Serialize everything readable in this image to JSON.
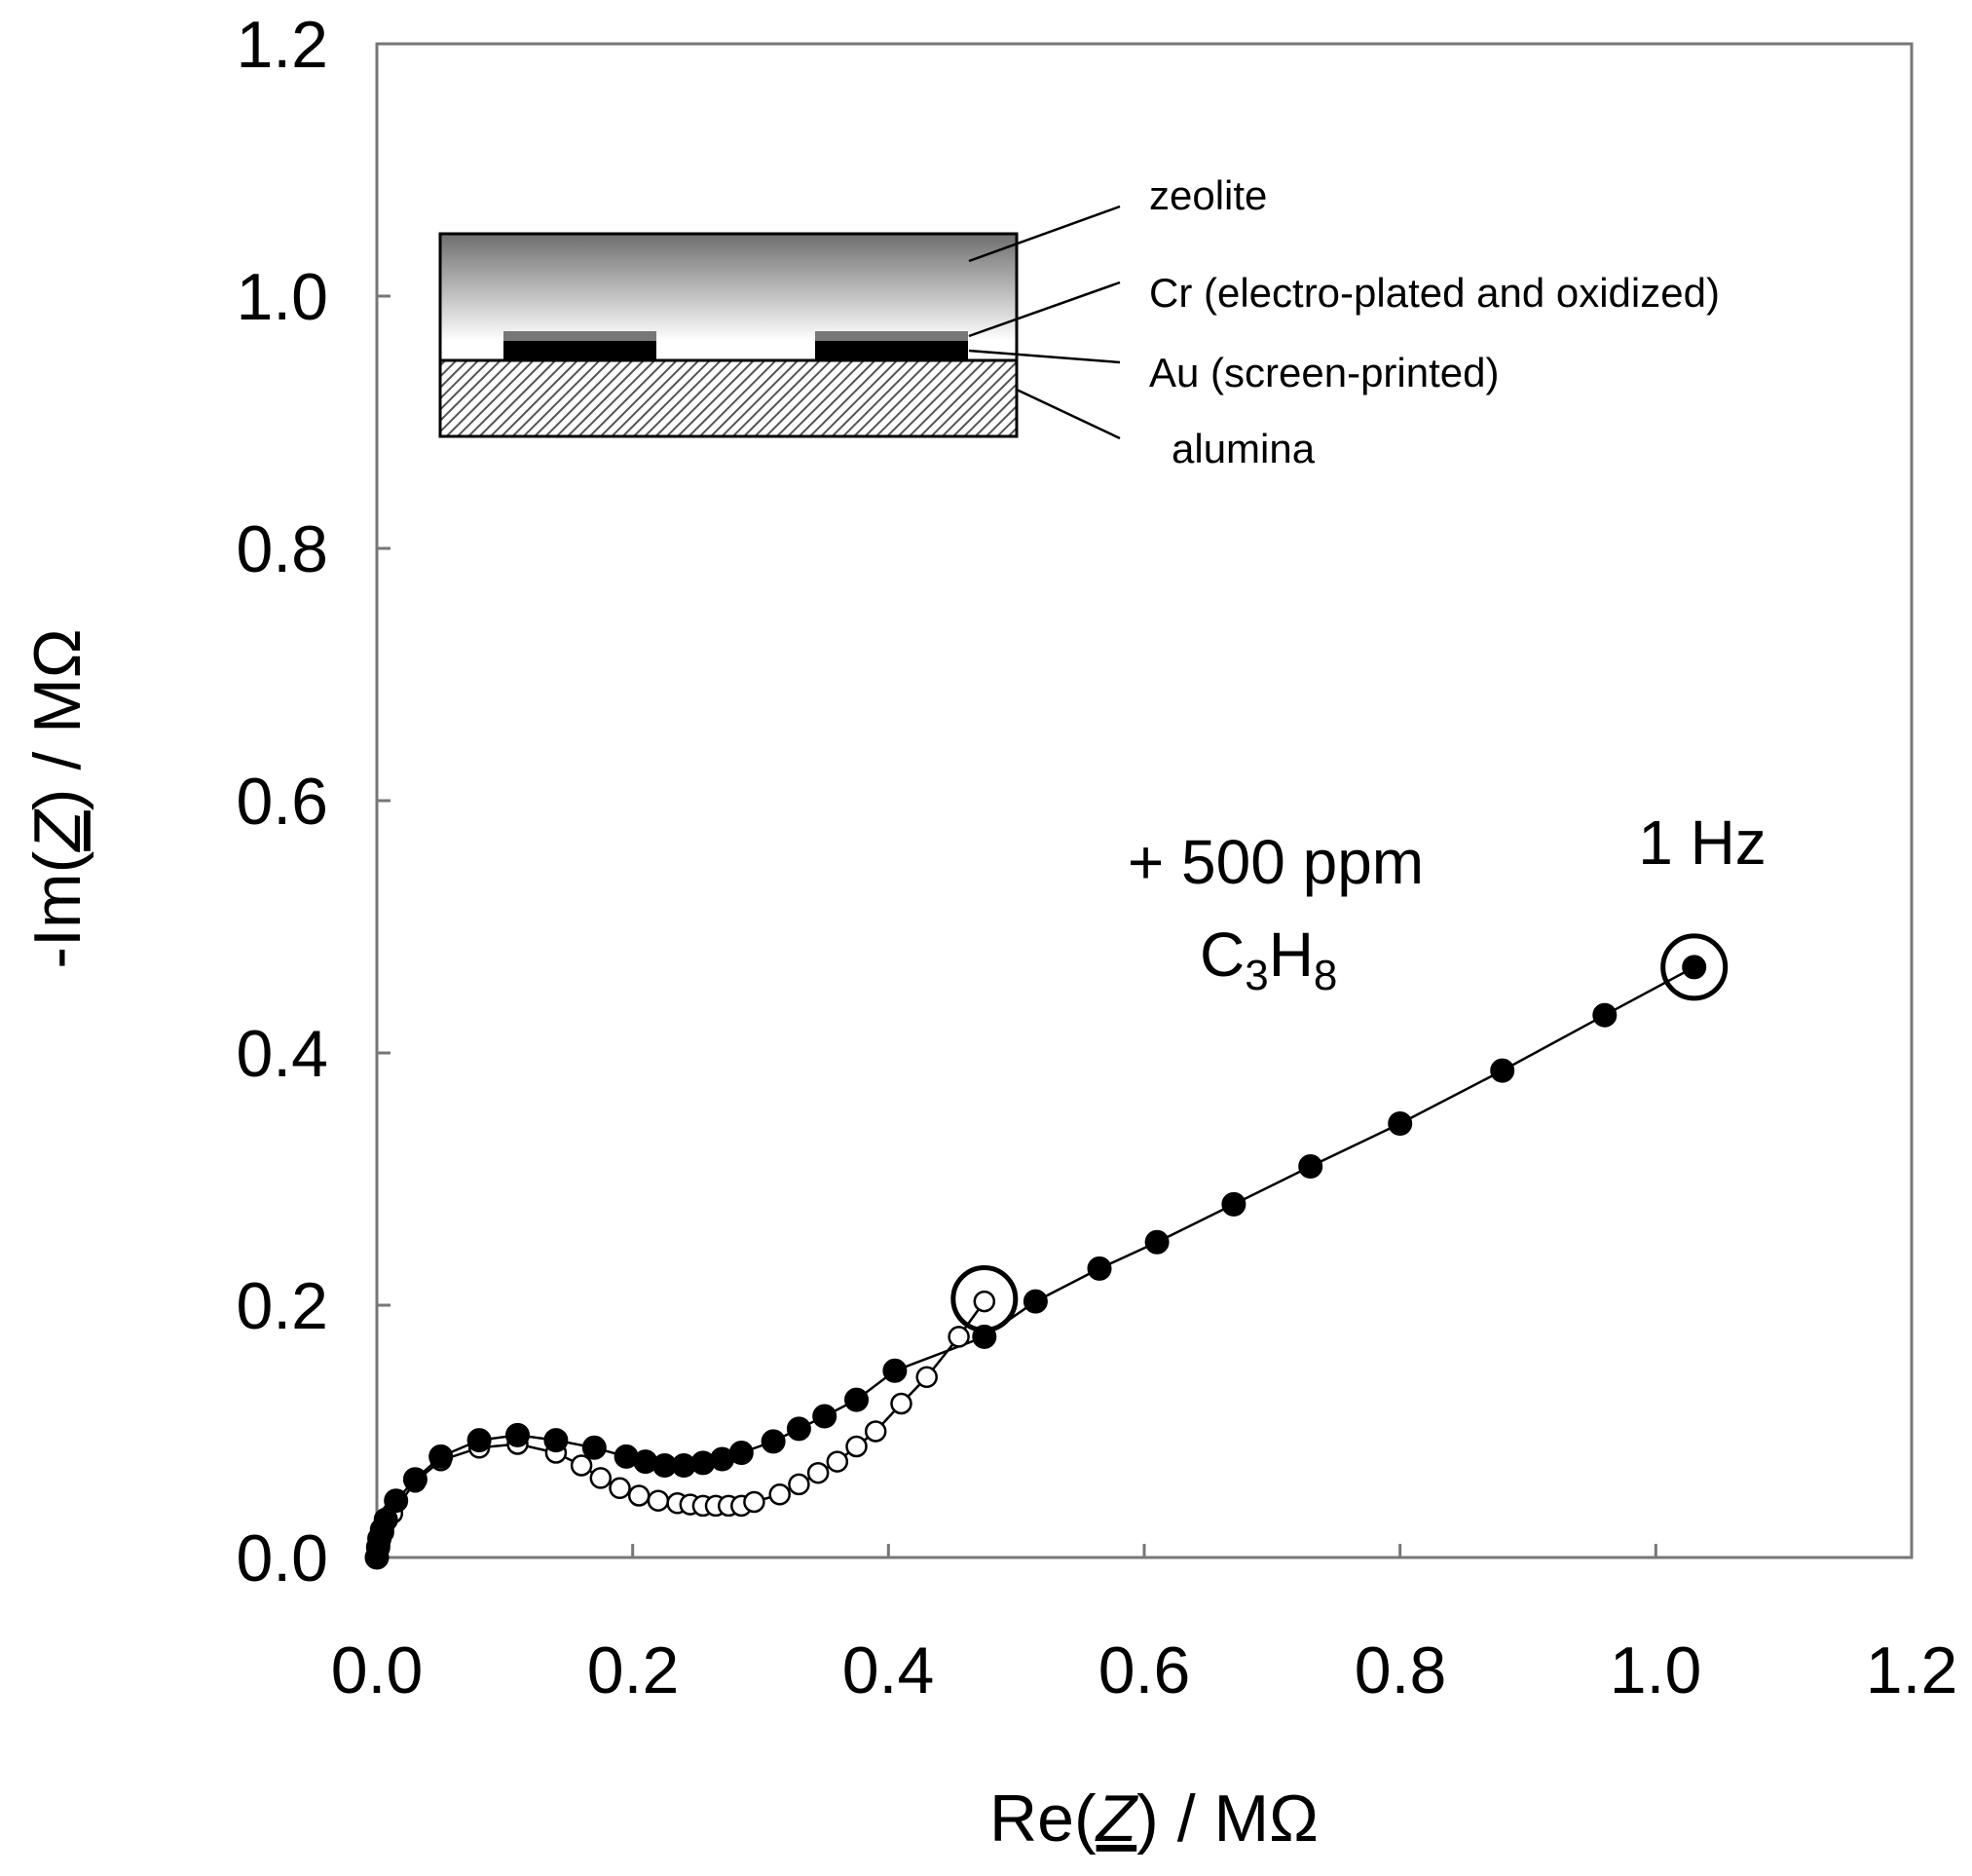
{
  "chart_data": {
    "type": "scatter",
    "x_title": {
      "prefix": "Re(",
      "var": "Z",
      "suffix": ") / MΩ"
    },
    "y_title": {
      "prefix": "-Im(",
      "var": "Z",
      "suffix": ") / MΩ"
    },
    "xlim": [
      0,
      1.2
    ],
    "ylim": [
      0,
      1.2
    ],
    "x_ticks": [
      "0.0",
      "0.2",
      "0.4",
      "0.6",
      "0.8",
      "1.0",
      "1.2"
    ],
    "y_ticks": [
      "0.0",
      "0.2",
      "0.4",
      "0.6",
      "0.8",
      "1.0",
      "1.2"
    ],
    "grid": false,
    "series": [
      {
        "name": "filled markers",
        "marker": "filled-circle",
        "points": [
          [
            0.0,
            0.0
          ],
          [
            0.001,
            0.008
          ],
          [
            0.002,
            0.015
          ],
          [
            0.004,
            0.022
          ],
          [
            0.007,
            0.03
          ],
          [
            0.015,
            0.045
          ],
          [
            0.03,
            0.062
          ],
          [
            0.05,
            0.08
          ],
          [
            0.08,
            0.093
          ],
          [
            0.11,
            0.097
          ],
          [
            0.14,
            0.093
          ],
          [
            0.17,
            0.087
          ],
          [
            0.195,
            0.08
          ],
          [
            0.21,
            0.076
          ],
          [
            0.225,
            0.073
          ],
          [
            0.24,
            0.073
          ],
          [
            0.255,
            0.075
          ],
          [
            0.27,
            0.078
          ],
          [
            0.285,
            0.083
          ],
          [
            0.31,
            0.092
          ],
          [
            0.33,
            0.102
          ],
          [
            0.35,
            0.112
          ],
          [
            0.375,
            0.125
          ],
          [
            0.405,
            0.148
          ],
          [
            0.475,
            0.175
          ],
          [
            0.515,
            0.203
          ],
          [
            0.565,
            0.229
          ],
          [
            0.61,
            0.25
          ],
          [
            0.67,
            0.28
          ],
          [
            0.73,
            0.31
          ],
          [
            0.8,
            0.344
          ],
          [
            0.88,
            0.386
          ],
          [
            0.96,
            0.43
          ],
          [
            1.03,
            0.468
          ]
        ]
      },
      {
        "name": "open markers",
        "marker": "open-circle",
        "points": [
          [
            0.0,
            0.0
          ],
          [
            0.002,
            0.01
          ],
          [
            0.005,
            0.02
          ],
          [
            0.012,
            0.035
          ],
          [
            0.03,
            0.06
          ],
          [
            0.05,
            0.077
          ],
          [
            0.08,
            0.087
          ],
          [
            0.11,
            0.09
          ],
          [
            0.14,
            0.083
          ],
          [
            0.16,
            0.073
          ],
          [
            0.175,
            0.063
          ],
          [
            0.19,
            0.055
          ],
          [
            0.205,
            0.049
          ],
          [
            0.22,
            0.045
          ],
          [
            0.235,
            0.043
          ],
          [
            0.245,
            0.042
          ],
          [
            0.255,
            0.041
          ],
          [
            0.265,
            0.041
          ],
          [
            0.275,
            0.041
          ],
          [
            0.285,
            0.041
          ],
          [
            0.295,
            0.044
          ],
          [
            0.315,
            0.05
          ],
          [
            0.33,
            0.058
          ],
          [
            0.345,
            0.067
          ],
          [
            0.36,
            0.076
          ],
          [
            0.375,
            0.088
          ],
          [
            0.39,
            0.1
          ],
          [
            0.41,
            0.122
          ],
          [
            0.43,
            0.143
          ],
          [
            0.455,
            0.175
          ],
          [
            0.475,
            0.203
          ]
        ]
      }
    ],
    "highlighted_points": [
      [
        0.475,
        0.205
      ],
      [
        1.03,
        0.468
      ]
    ],
    "annotations": {
      "gas_line1": "+ 500 ppm",
      "gas_line2": {
        "c": "C",
        "c_sub": "3",
        "h": "H",
        "h_sub": "8"
      },
      "freq": "1 Hz"
    },
    "inset": {
      "labels": {
        "zeolite": "zeolite",
        "cr": "Cr (electro-plated and oxidized)",
        "au": "Au (screen-printed)",
        "alumina": "alumina"
      }
    }
  }
}
